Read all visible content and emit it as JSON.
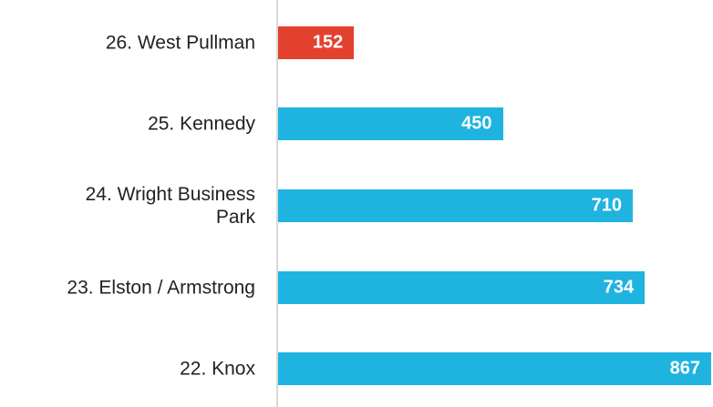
{
  "chart_data": {
    "type": "bar",
    "orientation": "horizontal",
    "categories": [
      "26. West Pullman",
      "25. Kennedy",
      "24. Wright Business\nPark",
      "23. Elston / Armstrong",
      "22. Knox"
    ],
    "values": [
      152,
      450,
      710,
      734,
      867
    ],
    "colors": [
      "#e2412e",
      "#1fb3e0",
      "#1fb3e0",
      "#1fb3e0",
      "#1fb3e0"
    ],
    "xlim": [
      0,
      867
    ]
  }
}
